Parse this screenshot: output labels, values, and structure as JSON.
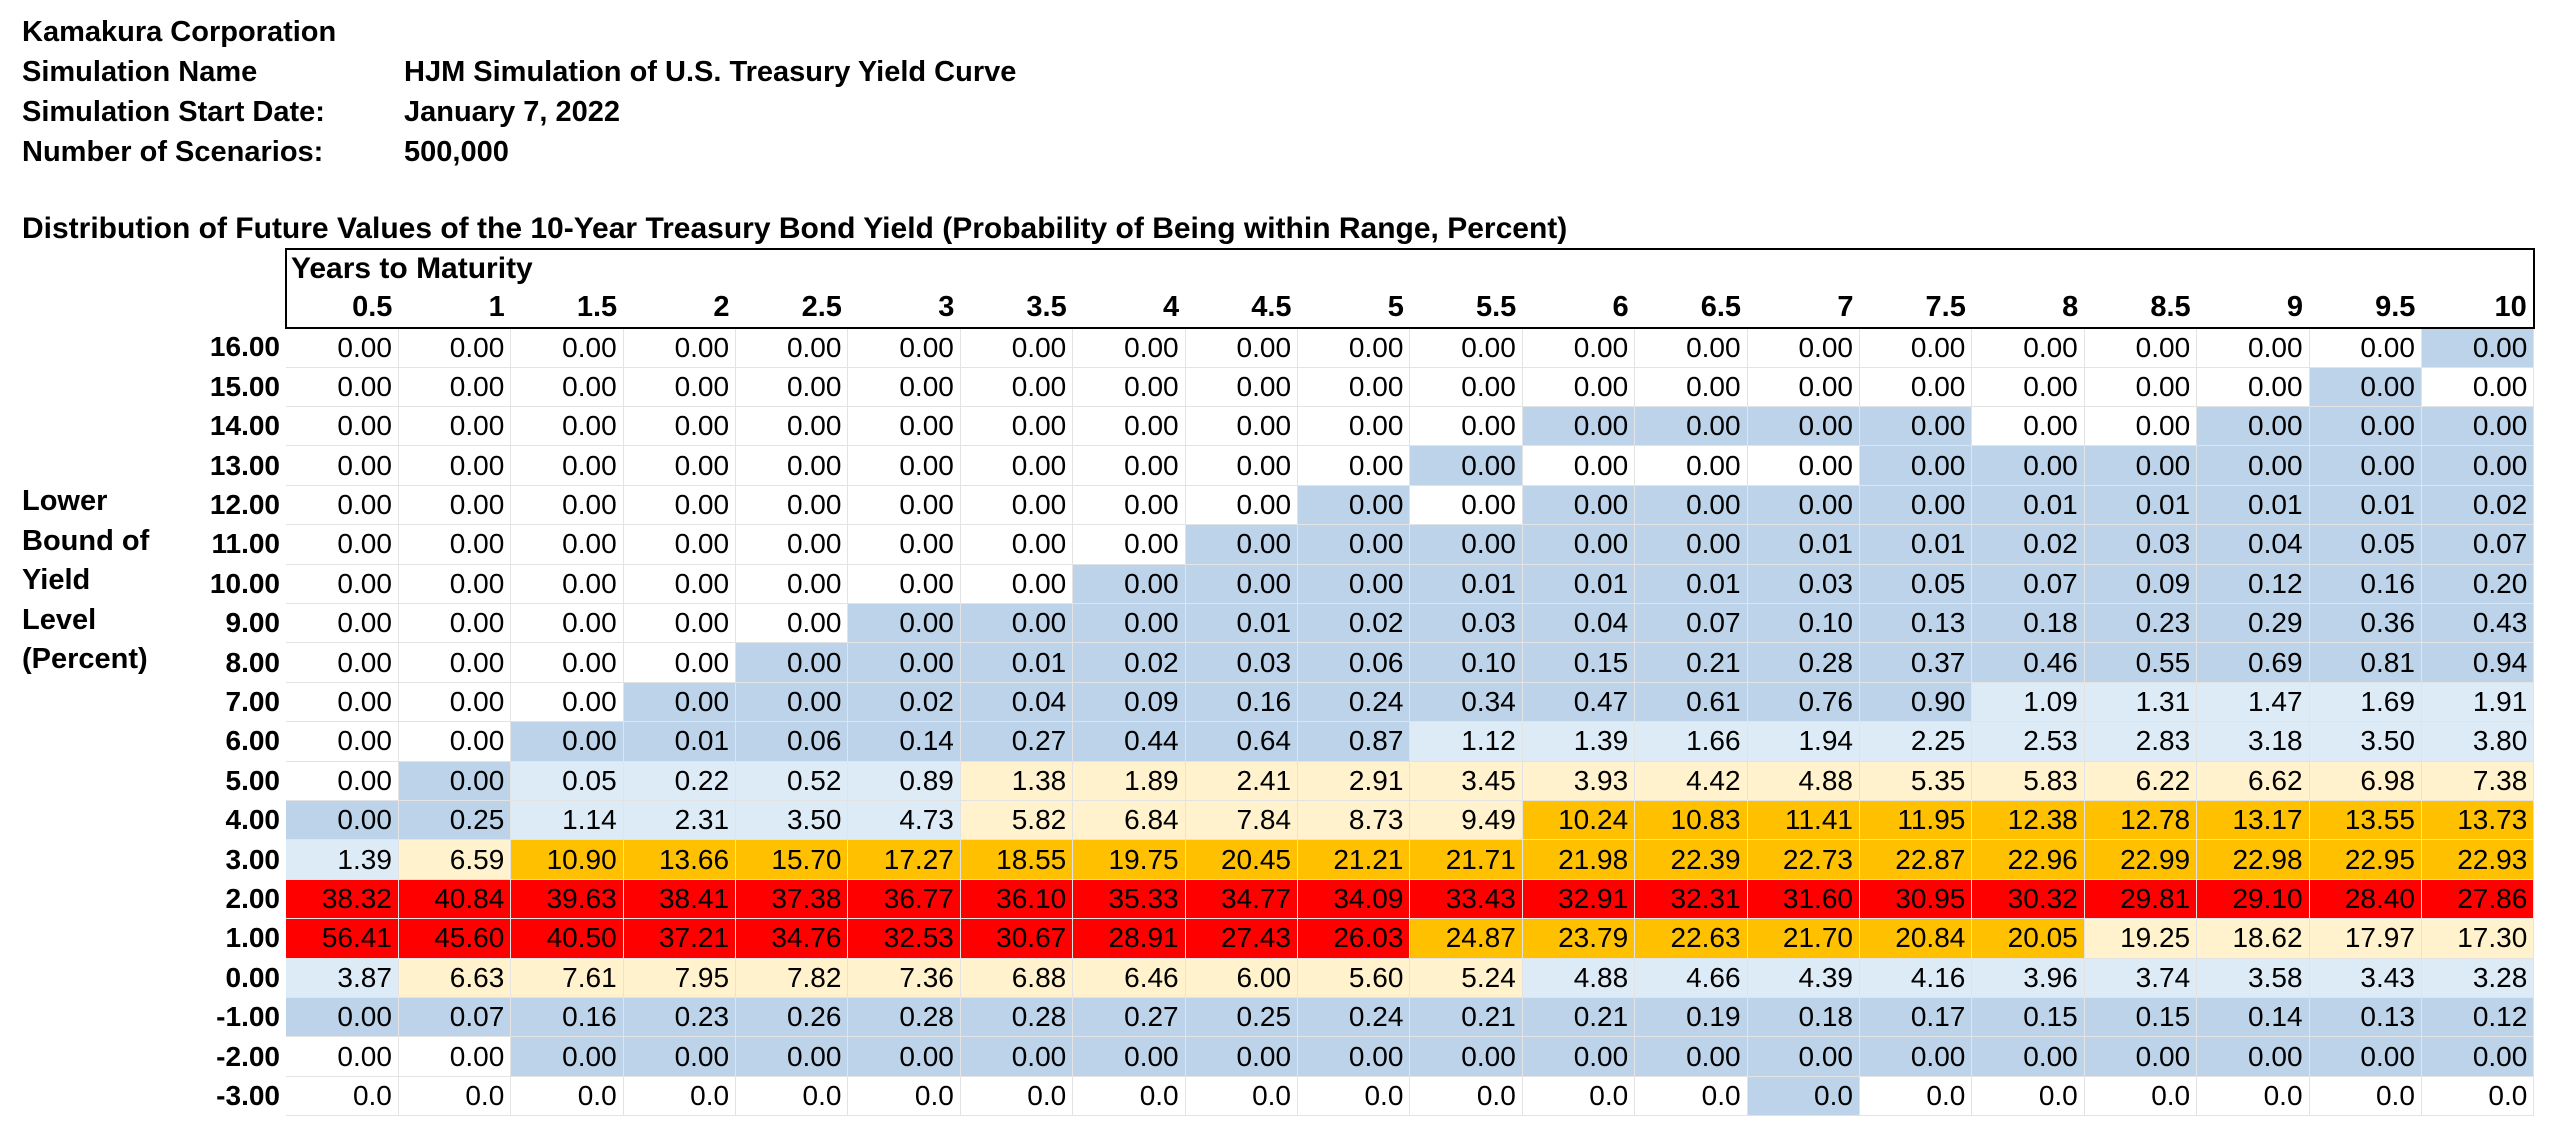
{
  "company": "Kamakura Corporation",
  "simulation": {
    "name_label": "Simulation Name",
    "name_value": "HJM Simulation of U.S. Treasury Yield Curve",
    "start_label": "Simulation Start Date:",
    "start_value": "January 7, 2022",
    "scenarios_label": "Number of Scenarios:",
    "scenarios_value": "500,000"
  },
  "table_title": "Distribution of Future Values of the 10-Year Treasury Bond Yield (Probability of Being within Range, Percent)",
  "side_label": [
    "Lower",
    "Bound of",
    "Yield",
    "Level",
    "(Percent)"
  ],
  "years_header": "Years to Maturity",
  "maturities": [
    "0.5",
    "1",
    "1.5",
    "2",
    "2.5",
    "3",
    "3.5",
    "4",
    "4.5",
    "5",
    "5.5",
    "6",
    "6.5",
    "7",
    "7.5",
    "8",
    "8.5",
    "9",
    "9.5",
    "10"
  ],
  "colors": {
    "blue": "#bcd3ea",
    "lightblue": "#ddebf7",
    "cream": "#fff2cc",
    "orange": "#ffc000",
    "red": "#ff0000",
    "white": "#ffffff"
  },
  "rows": [
    {
      "label": "16.00",
      "values": [
        "0.00",
        "0.00",
        "0.00",
        "0.00",
        "0.00",
        "0.00",
        "0.00",
        "0.00",
        "0.00",
        "0.00",
        "0.00",
        "0.00",
        "0.00",
        "0.00",
        "0.00",
        "0.00",
        "0.00",
        "0.00",
        "0.00",
        "0.00"
      ],
      "colors": "wwwwwwwwwwwwwwwwwwwb"
    },
    {
      "label": "15.00",
      "values": [
        "0.00",
        "0.00",
        "0.00",
        "0.00",
        "0.00",
        "0.00",
        "0.00",
        "0.00",
        "0.00",
        "0.00",
        "0.00",
        "0.00",
        "0.00",
        "0.00",
        "0.00",
        "0.00",
        "0.00",
        "0.00",
        "0.00",
        "0.00"
      ],
      "colors": "wwwwwwwwwwwwwwwwwwbw"
    },
    {
      "label": "14.00",
      "values": [
        "0.00",
        "0.00",
        "0.00",
        "0.00",
        "0.00",
        "0.00",
        "0.00",
        "0.00",
        "0.00",
        "0.00",
        "0.00",
        "0.00",
        "0.00",
        "0.00",
        "0.00",
        "0.00",
        "0.00",
        "0.00",
        "0.00",
        "0.00"
      ],
      "colors": "wwwwwwwwwwwbbbbwwbbb"
    },
    {
      "label": "13.00",
      "values": [
        "0.00",
        "0.00",
        "0.00",
        "0.00",
        "0.00",
        "0.00",
        "0.00",
        "0.00",
        "0.00",
        "0.00",
        "0.00",
        "0.00",
        "0.00",
        "0.00",
        "0.00",
        "0.00",
        "0.00",
        "0.00",
        "0.00",
        "0.00"
      ],
      "colors": "wwwwwwwwwwbwwwbbbbbb"
    },
    {
      "label": "12.00",
      "values": [
        "0.00",
        "0.00",
        "0.00",
        "0.00",
        "0.00",
        "0.00",
        "0.00",
        "0.00",
        "0.00",
        "0.00",
        "0.00",
        "0.00",
        "0.00",
        "0.00",
        "0.00",
        "0.01",
        "0.01",
        "0.01",
        "0.01",
        "0.02"
      ],
      "colors": "wwwwwwwwwbwbbbbbbbbb"
    },
    {
      "label": "11.00",
      "values": [
        "0.00",
        "0.00",
        "0.00",
        "0.00",
        "0.00",
        "0.00",
        "0.00",
        "0.00",
        "0.00",
        "0.00",
        "0.00",
        "0.00",
        "0.00",
        "0.01",
        "0.01",
        "0.02",
        "0.03",
        "0.04",
        "0.05",
        "0.07"
      ],
      "colors": "wwwwwwwwbbbbbbbbbbbb"
    },
    {
      "label": "10.00",
      "values": [
        "0.00",
        "0.00",
        "0.00",
        "0.00",
        "0.00",
        "0.00",
        "0.00",
        "0.00",
        "0.00",
        "0.00",
        "0.01",
        "0.01",
        "0.01",
        "0.03",
        "0.05",
        "0.07",
        "0.09",
        "0.12",
        "0.16",
        "0.20"
      ],
      "colors": "wwwwwwwbbbbbbbbbbbbb"
    },
    {
      "label": "9.00",
      "values": [
        "0.00",
        "0.00",
        "0.00",
        "0.00",
        "0.00",
        "0.00",
        "0.00",
        "0.00",
        "0.01",
        "0.02",
        "0.03",
        "0.04",
        "0.07",
        "0.10",
        "0.13",
        "0.18",
        "0.23",
        "0.29",
        "0.36",
        "0.43"
      ],
      "colors": "wwwwwbbbbbbbbbbbbbbb"
    },
    {
      "label": "8.00",
      "values": [
        "0.00",
        "0.00",
        "0.00",
        "0.00",
        "0.00",
        "0.00",
        "0.01",
        "0.02",
        "0.03",
        "0.06",
        "0.10",
        "0.15",
        "0.21",
        "0.28",
        "0.37",
        "0.46",
        "0.55",
        "0.69",
        "0.81",
        "0.94"
      ],
      "colors": "wwwwbbbbbbbbbbbbbbbb"
    },
    {
      "label": "7.00",
      "values": [
        "0.00",
        "0.00",
        "0.00",
        "0.00",
        "0.00",
        "0.02",
        "0.04",
        "0.09",
        "0.16",
        "0.24",
        "0.34",
        "0.47",
        "0.61",
        "0.76",
        "0.90",
        "1.09",
        "1.31",
        "1.47",
        "1.69",
        "1.91"
      ],
      "colors": "wwwbbbbbbbbbbbbLLLLL"
    },
    {
      "label": "6.00",
      "values": [
        "0.00",
        "0.00",
        "0.00",
        "0.01",
        "0.06",
        "0.14",
        "0.27",
        "0.44",
        "0.64",
        "0.87",
        "1.12",
        "1.39",
        "1.66",
        "1.94",
        "2.25",
        "2.53",
        "2.83",
        "3.18",
        "3.50",
        "3.80"
      ],
      "colors": "wwbbbbbbbbLLLLLLLLLL"
    },
    {
      "label": "5.00",
      "values": [
        "0.00",
        "0.00",
        "0.05",
        "0.22",
        "0.52",
        "0.89",
        "1.38",
        "1.89",
        "2.41",
        "2.91",
        "3.45",
        "3.93",
        "4.42",
        "4.88",
        "5.35",
        "5.83",
        "6.22",
        "6.62",
        "6.98",
        "7.38"
      ],
      "colors": "wbLLLLCCCCCCCCCCCCCC"
    },
    {
      "label": "4.00",
      "values": [
        "0.00",
        "0.25",
        "1.14",
        "2.31",
        "3.50",
        "4.73",
        "5.82",
        "6.84",
        "7.84",
        "8.73",
        "9.49",
        "10.24",
        "10.83",
        "11.41",
        "11.95",
        "12.38",
        "12.78",
        "13.17",
        "13.55",
        "13.73"
      ],
      "colors": "bbLLLLCCCCCOOOOOOOOO"
    },
    {
      "label": "3.00",
      "values": [
        "1.39",
        "6.59",
        "10.90",
        "13.66",
        "15.70",
        "17.27",
        "18.55",
        "19.75",
        "20.45",
        "21.21",
        "21.71",
        "21.98",
        "22.39",
        "22.73",
        "22.87",
        "22.96",
        "22.99",
        "22.98",
        "22.95",
        "22.93"
      ],
      "colors": "LCOOOOOOOOOOOOOOOOOO"
    },
    {
      "label": "2.00",
      "values": [
        "38.32",
        "40.84",
        "39.63",
        "38.41",
        "37.38",
        "36.77",
        "36.10",
        "35.33",
        "34.77",
        "34.09",
        "33.43",
        "32.91",
        "32.31",
        "31.60",
        "30.95",
        "30.32",
        "29.81",
        "29.10",
        "28.40",
        "27.86"
      ],
      "colors": "RRRRRRRRRRRRRRRRRRRR"
    },
    {
      "label": "1.00",
      "values": [
        "56.41",
        "45.60",
        "40.50",
        "37.21",
        "34.76",
        "32.53",
        "30.67",
        "28.91",
        "27.43",
        "26.03",
        "24.87",
        "23.79",
        "22.63",
        "21.70",
        "20.84",
        "20.05",
        "19.25",
        "18.62",
        "17.97",
        "17.30"
      ],
      "colors": "RRRRRRRRRROOOOOOCCCC"
    },
    {
      "label": "0.00",
      "values": [
        "3.87",
        "6.63",
        "7.61",
        "7.95",
        "7.82",
        "7.36",
        "6.88",
        "6.46",
        "6.00",
        "5.60",
        "5.24",
        "4.88",
        "4.66",
        "4.39",
        "4.16",
        "3.96",
        "3.74",
        "3.58",
        "3.43",
        "3.28"
      ],
      "colors": "LCCCCCCCCCCLLLLLLLLL"
    },
    {
      "label": "-1.00",
      "values": [
        "0.00",
        "0.07",
        "0.16",
        "0.23",
        "0.26",
        "0.28",
        "0.28",
        "0.27",
        "0.25",
        "0.24",
        "0.21",
        "0.21",
        "0.19",
        "0.18",
        "0.17",
        "0.15",
        "0.15",
        "0.14",
        "0.13",
        "0.12"
      ],
      "colors": "bbbbbbbbbbbbbbbbbbbb"
    },
    {
      "label": "-2.00",
      "values": [
        "0.00",
        "0.00",
        "0.00",
        "0.00",
        "0.00",
        "0.00",
        "0.00",
        "0.00",
        "0.00",
        "0.00",
        "0.00",
        "0.00",
        "0.00",
        "0.00",
        "0.00",
        "0.00",
        "0.00",
        "0.00",
        "0.00",
        "0.00"
      ],
      "colors": "wwbbbbbbbbbbbbbbbbbb"
    },
    {
      "label": "-3.00",
      "values": [
        "0.0",
        "0.0",
        "0.0",
        "0.0",
        "0.0",
        "0.0",
        "0.0",
        "0.0",
        "0.0",
        "0.0",
        "0.0",
        "0.0",
        "0.0",
        "0.0",
        "0.0",
        "0.0",
        "0.0",
        "0.0",
        "0.0",
        "0.0"
      ],
      "colors": "wwwwwwwwwwwwwbwwwwww"
    }
  ]
}
